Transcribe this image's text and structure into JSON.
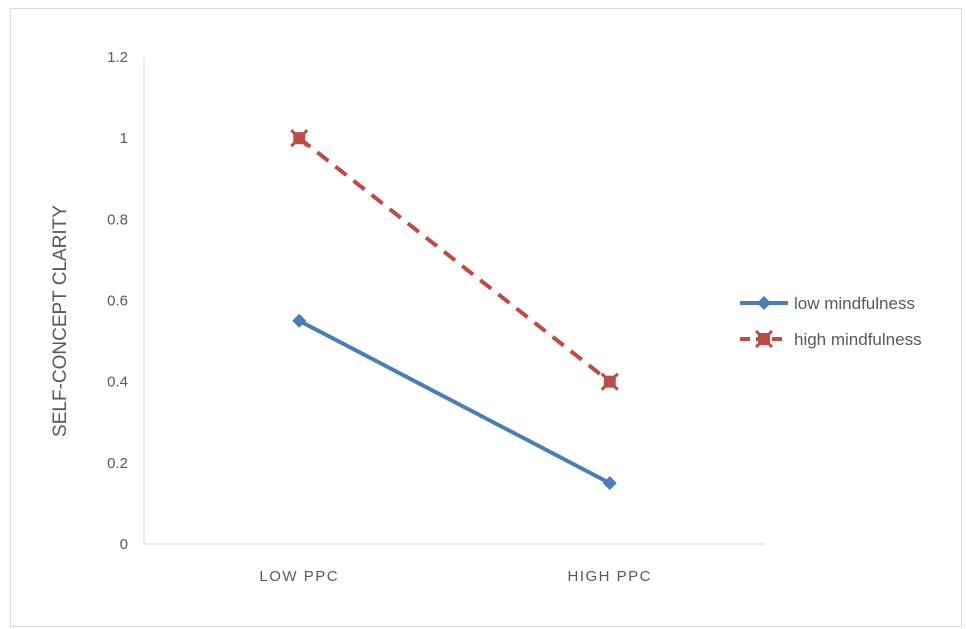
{
  "chart_data": {
    "type": "line",
    "title": "",
    "xlabel": "",
    "ylabel": "SELF-CONCEPT CLARITY",
    "categories": [
      "LOW PPC",
      "HIGH PPC"
    ],
    "ylim": [
      0,
      1.2
    ],
    "yticks": [
      "0",
      "0.2",
      "0.4",
      "0.6",
      "0.8",
      "1",
      "1.2"
    ],
    "grid": false,
    "legend_position": "right",
    "series": [
      {
        "name": "low mindfulness",
        "values": [
          0.55,
          0.15
        ],
        "color": "#4a7ebb",
        "dash": "solid",
        "marker": "diamond"
      },
      {
        "name": "high mindfulness",
        "values": [
          1.0,
          0.4
        ],
        "color": "#be4b48",
        "dash": "dashed",
        "marker": "x-square"
      }
    ]
  }
}
